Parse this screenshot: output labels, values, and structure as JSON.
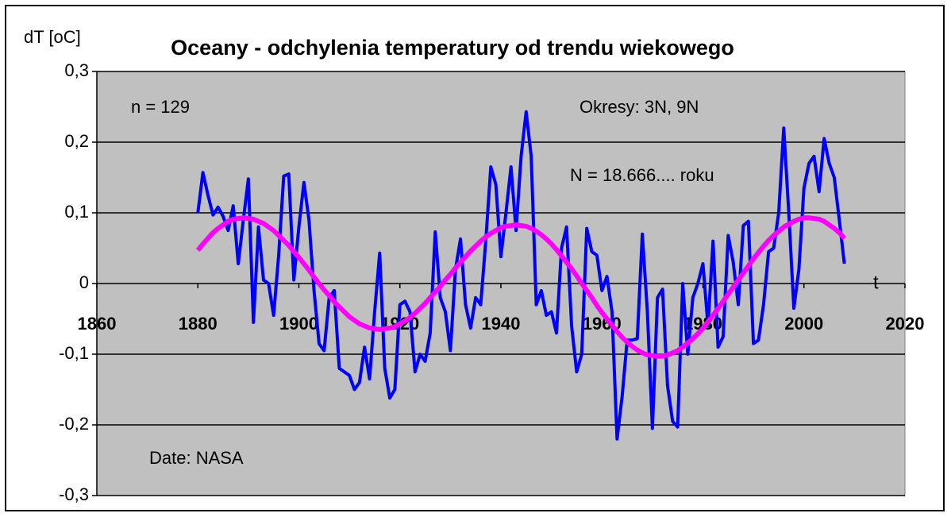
{
  "chart_data": {
    "type": "line",
    "title": "Oceany - odchylenia temperatury od trendu wiekowego",
    "y_label": "dT  [oC]",
    "x_label": "t",
    "annotations": [
      "n = 129",
      "Okresy:  3N, 9N",
      "N = 18.666....  roku",
      "Date:  NASA"
    ],
    "xlim": [
      1860,
      2020
    ],
    "xticks": [
      1860,
      1880,
      1900,
      1920,
      1940,
      1960,
      1980,
      2000,
      2020
    ],
    "ylim": [
      -0.3,
      0.3
    ],
    "yticks": [
      {
        "value": -0.3,
        "label": "-0,3"
      },
      {
        "value": -0.2,
        "label": "-0,2"
      },
      {
        "value": -0.1,
        "label": "-0,1"
      },
      0,
      {
        "value": 0.1,
        "label": "0,1"
      },
      {
        "value": 0.2,
        "label": "0,2"
      },
      {
        "value": 0.3,
        "label": "0,3"
      }
    ],
    "grid": true,
    "x": [
      1880,
      1881,
      1882,
      1883,
      1884,
      1885,
      1886,
      1887,
      1888,
      1889,
      1890,
      1891,
      1892,
      1893,
      1894,
      1895,
      1896,
      1897,
      1898,
      1899,
      1900,
      1901,
      1902,
      1903,
      1904,
      1905,
      1906,
      1907,
      1908,
      1909,
      1910,
      1911,
      1912,
      1913,
      1914,
      1915,
      1916,
      1917,
      1918,
      1919,
      1920,
      1921,
      1922,
      1923,
      1924,
      1925,
      1926,
      1927,
      1928,
      1929,
      1930,
      1931,
      1932,
      1933,
      1934,
      1935,
      1936,
      1937,
      1938,
      1939,
      1940,
      1941,
      1942,
      1943,
      1944,
      1945,
      1946,
      1947,
      1948,
      1949,
      1950,
      1951,
      1952,
      1953,
      1954,
      1955,
      1956,
      1957,
      1958,
      1959,
      1960,
      1961,
      1962,
      1963,
      1964,
      1965,
      1966,
      1967,
      1968,
      1969,
      1970,
      1971,
      1972,
      1973,
      1974,
      1975,
      1976,
      1977,
      1978,
      1979,
      1980,
      1981,
      1982,
      1983,
      1984,
      1985,
      1986,
      1987,
      1988,
      1989,
      1990,
      1991,
      1992,
      1993,
      1994,
      1995,
      1996,
      1997,
      1998,
      1999,
      2000,
      2001,
      2002,
      2003,
      2004,
      2005,
      2006,
      2007,
      2008
    ],
    "series": [
      {
        "color": "#0000ff",
        "width": 4,
        "values": [
          0.1,
          0.157,
          0.125,
          0.097,
          0.108,
          0.095,
          0.075,
          0.11,
          0.028,
          0.09,
          0.148,
          -0.055,
          0.08,
          0.005,
          0.0,
          -0.045,
          0.04,
          0.152,
          0.155,
          0.005,
          0.08,
          0.143,
          0.09,
          -0.01,
          -0.085,
          -0.095,
          -0.02,
          -0.01,
          -0.12,
          -0.125,
          -0.13,
          -0.15,
          -0.14,
          -0.09,
          -0.135,
          -0.04,
          0.043,
          -0.12,
          -0.162,
          -0.15,
          -0.03,
          -0.025,
          -0.04,
          -0.125,
          -0.1,
          -0.11,
          -0.07,
          0.073,
          -0.02,
          -0.04,
          -0.095,
          0.02,
          0.063,
          -0.03,
          -0.063,
          -0.02,
          -0.03,
          0.06,
          0.165,
          0.14,
          0.038,
          0.1,
          0.165,
          0.075,
          0.18,
          0.243,
          0.18,
          -0.03,
          -0.01,
          -0.045,
          -0.04,
          -0.07,
          0.05,
          0.08,
          -0.06,
          -0.125,
          -0.1,
          0.078,
          0.045,
          0.04,
          -0.01,
          0.01,
          -0.04,
          -0.22,
          -0.16,
          -0.08,
          -0.08,
          -0.078,
          0.07,
          -0.04,
          -0.205,
          -0.02,
          -0.008,
          -0.145,
          -0.195,
          -0.203,
          0.0,
          -0.1,
          -0.02,
          0.0,
          0.028,
          -0.06,
          0.06,
          -0.09,
          -0.075,
          0.068,
          0.03,
          -0.03,
          0.082,
          0.088,
          -0.085,
          -0.08,
          -0.03,
          0.045,
          0.05,
          0.1,
          0.22,
          0.1,
          -0.035,
          0.02,
          0.135,
          0.17,
          0.18,
          0.13,
          0.205,
          0.17,
          0.15,
          0.09,
          0.028
        ]
      },
      {
        "color": "#ff00ff",
        "width": 6,
        "values": [
          0.047,
          0.056,
          0.064,
          0.072,
          0.078,
          0.083,
          0.088,
          0.091,
          0.092,
          0.093,
          0.092,
          0.091,
          0.088,
          0.085,
          0.08,
          0.075,
          0.068,
          0.061,
          0.054,
          0.045,
          0.037,
          0.028,
          0.019,
          0.009,
          0.0,
          -0.009,
          -0.017,
          -0.026,
          -0.033,
          -0.04,
          -0.047,
          -0.052,
          -0.057,
          -0.06,
          -0.063,
          -0.064,
          -0.065,
          -0.064,
          -0.063,
          -0.061,
          -0.057,
          -0.053,
          -0.048,
          -0.042,
          -0.035,
          -0.028,
          -0.02,
          -0.012,
          -0.004,
          0.005,
          0.013,
          0.022,
          0.03,
          0.038,
          0.046,
          0.053,
          0.06,
          0.066,
          0.071,
          0.075,
          0.079,
          0.081,
          0.082,
          0.083,
          0.082,
          0.081,
          0.078,
          0.074,
          0.069,
          0.063,
          0.056,
          0.048,
          0.039,
          0.03,
          0.021,
          0.011,
          0.0,
          -0.01,
          -0.02,
          -0.031,
          -0.041,
          -0.05,
          -0.059,
          -0.068,
          -0.076,
          -0.083,
          -0.089,
          -0.094,
          -0.098,
          -0.101,
          -0.102,
          -0.103,
          -0.103,
          -0.101,
          -0.098,
          -0.095,
          -0.09,
          -0.084,
          -0.078,
          -0.071,
          -0.063,
          -0.054,
          -0.045,
          -0.035,
          -0.025,
          -0.015,
          -0.005,
          0.005,
          0.015,
          0.025,
          0.035,
          0.044,
          0.053,
          0.061,
          0.068,
          0.074,
          0.08,
          0.084,
          0.088,
          0.091,
          0.093,
          0.093,
          0.092,
          0.091,
          0.088,
          0.083,
          0.078,
          0.072,
          0.064
        ]
      }
    ]
  }
}
